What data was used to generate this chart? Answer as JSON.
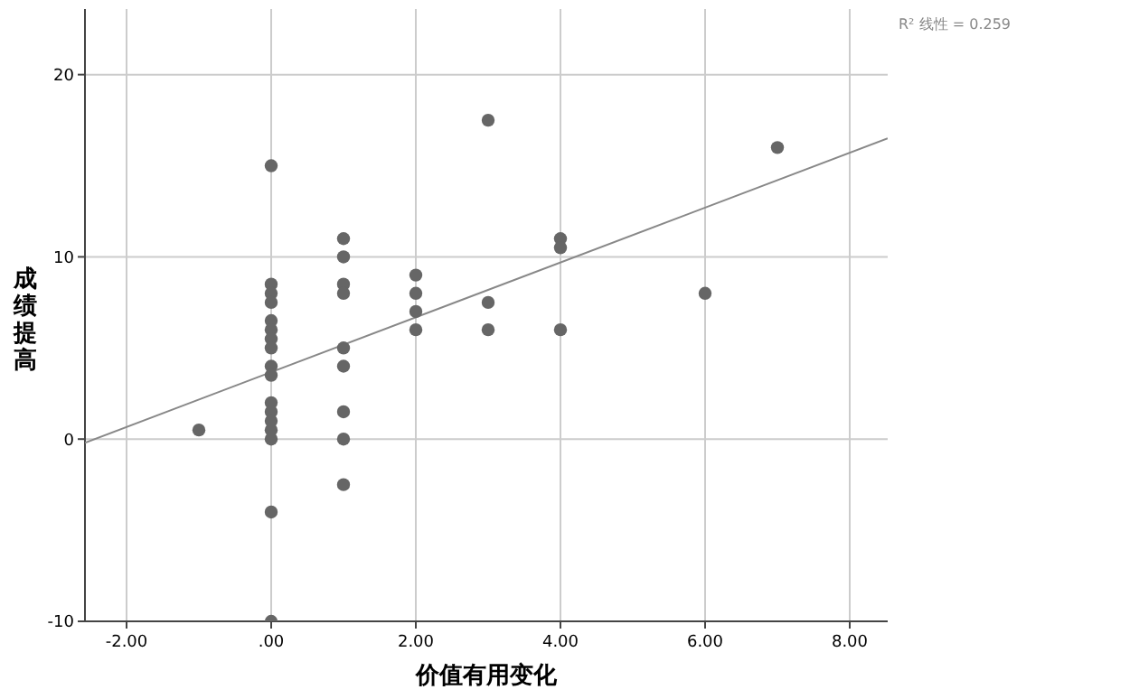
{
  "chart_data": {
    "type": "scatter",
    "xlabel": "价值有用变化",
    "ylabel": "成绩提高",
    "annotations": [
      "R² 线性 = 0.259"
    ],
    "xlim": [
      -2.575,
      8.525
    ],
    "ylim": [
      -10,
      23.6
    ],
    "xticks": [
      {
        "value": -2,
        "label": "-2.00"
      },
      {
        "value": 0,
        "label": ".00"
      },
      {
        "value": 2,
        "label": "2.00"
      },
      {
        "value": 4,
        "label": "4.00"
      },
      {
        "value": 6,
        "label": "6.00"
      },
      {
        "value": 8,
        "label": "8.00"
      }
    ],
    "yticks": [
      -10,
      0,
      10,
      20
    ],
    "grid": true,
    "marker": "circle",
    "series": [
      {
        "color": "#666666",
        "x": [
          0,
          0,
          0,
          0,
          0,
          0,
          0,
          0,
          0,
          0,
          0,
          0,
          0,
          0,
          0,
          0,
          0,
          -1,
          1,
          1,
          1,
          1,
          1,
          1,
          1,
          1,
          1,
          2,
          2,
          2,
          2,
          3,
          3,
          3,
          4,
          4,
          4,
          6,
          7
        ],
        "values": [
          15,
          8.5,
          8,
          7.5,
          6.5,
          6,
          5.5,
          5,
          4,
          3.5,
          2,
          1.5,
          1,
          0.5,
          0,
          -4,
          -10,
          0.5,
          11,
          10,
          8.5,
          8,
          5,
          4,
          1.5,
          0,
          -2.5,
          9,
          8,
          7,
          6,
          17.5,
          7.5,
          6,
          11,
          10.5,
          6,
          8,
          16
        ]
      },
      {
        "type": "line",
        "color": "#888888",
        "marker": "none",
        "x": [
          -2.575,
          8.525
        ],
        "values": [
          -0.2,
          16.5
        ]
      }
    ]
  }
}
